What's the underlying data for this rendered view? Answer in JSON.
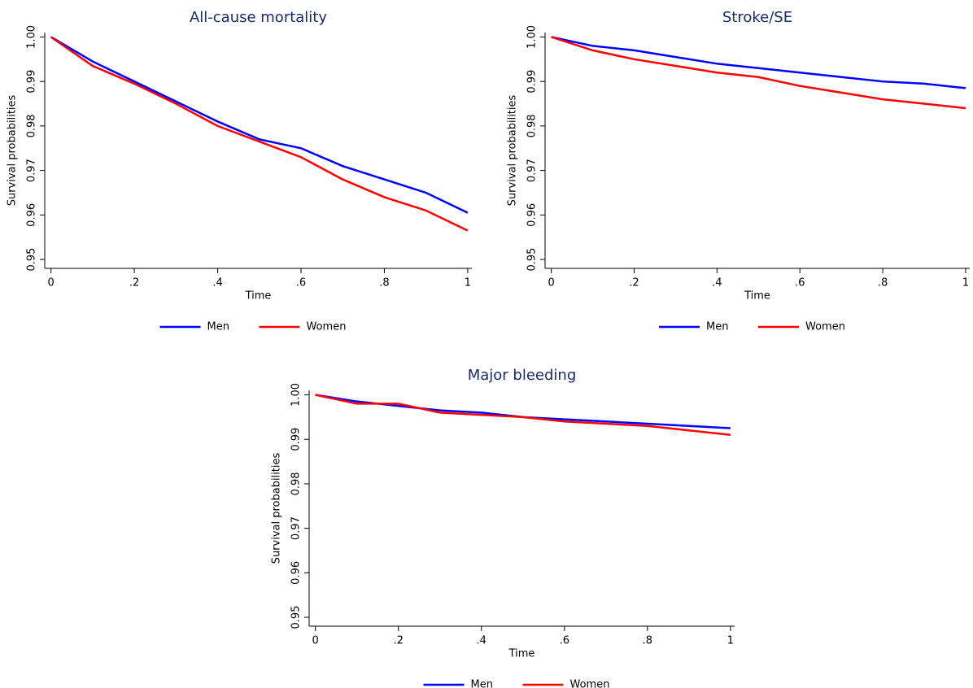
{
  "chart_data": [
    {
      "type": "line",
      "title": "All-cause mortality",
      "x_label": "Time",
      "y_label": "Survival probabilities",
      "x": [
        0,
        0.1,
        0.2,
        0.3,
        0.4,
        0.5,
        0.6,
        0.7,
        0.8,
        0.9,
        1
      ],
      "series": [
        {
          "name": "Men",
          "color": "#0000ff",
          "values": [
            1.0,
            0.9945,
            0.99,
            0.9855,
            0.981,
            0.977,
            0.975,
            0.971,
            0.968,
            0.965,
            0.9605
          ]
        },
        {
          "name": "Women",
          "color": "#ff0000",
          "values": [
            1.0,
            0.9935,
            0.9895,
            0.985,
            0.98,
            0.9765,
            0.973,
            0.968,
            0.964,
            0.961,
            0.9565
          ]
        }
      ],
      "xlim": [
        -0.015,
        1.01
      ],
      "ylim": [
        0.948,
        1.001
      ],
      "xticks": [
        0,
        {
          "value": 0.2,
          "label": ".2"
        },
        {
          "value": 0.4,
          "label": ".4"
        },
        {
          "value": 0.6,
          "label": ".6"
        },
        {
          "value": 0.8,
          "label": ".8"
        },
        1
      ],
      "yticks": [
        0.95,
        0.96,
        0.97,
        0.98,
        0.99,
        {
          "value": 1,
          "label": "1.00"
        }
      ]
    },
    {
      "type": "line",
      "title": "Stroke/SE",
      "x_label": "Time",
      "y_label": "Survival probabilities",
      "x": [
        0,
        0.1,
        0.2,
        0.3,
        0.4,
        0.5,
        0.6,
        0.7,
        0.8,
        0.9,
        1
      ],
      "series": [
        {
          "name": "Men",
          "color": "#0000ff",
          "values": [
            1.0,
            0.998,
            0.997,
            0.9955,
            0.994,
            0.993,
            0.992,
            0.991,
            0.99,
            0.9895,
            0.9885
          ]
        },
        {
          "name": "Women",
          "color": "#ff0000",
          "values": [
            1.0,
            0.997,
            0.995,
            0.9935,
            0.992,
            0.991,
            0.989,
            0.9875,
            0.986,
            0.985,
            0.984
          ]
        }
      ],
      "xlim": [
        -0.015,
        1.01
      ],
      "ylim": [
        0.948,
        1.001
      ],
      "xticks": [
        0,
        {
          "value": 0.2,
          "label": ".2"
        },
        {
          "value": 0.4,
          "label": ".4"
        },
        {
          "value": 0.6,
          "label": ".6"
        },
        {
          "value": 0.8,
          "label": ".8"
        },
        1
      ],
      "yticks": [
        0.95,
        0.96,
        0.97,
        0.98,
        0.99,
        {
          "value": 1,
          "label": "1.00"
        }
      ]
    },
    {
      "type": "line",
      "title": "Major bleeding",
      "x_label": "Time",
      "y_label": "Survival probabilities",
      "x": [
        0,
        0.1,
        0.2,
        0.3,
        0.4,
        0.5,
        0.6,
        0.7,
        0.8,
        0.9,
        1
      ],
      "series": [
        {
          "name": "Men",
          "color": "#0000ff",
          "values": [
            1.0,
            0.9985,
            0.9975,
            0.9965,
            0.996,
            0.995,
            0.9945,
            0.994,
            0.9935,
            0.993,
            0.9925
          ]
        },
        {
          "name": "Women",
          "color": "#ff0000",
          "values": [
            1.0,
            0.998,
            0.998,
            0.996,
            0.9955,
            0.995,
            0.994,
            0.9935,
            0.993,
            0.992,
            0.991
          ]
        }
      ],
      "xlim": [
        -0.015,
        1.01
      ],
      "ylim": [
        0.948,
        1.001
      ],
      "xticks": [
        0,
        {
          "value": 0.2,
          "label": ".2"
        },
        {
          "value": 0.4,
          "label": ".4"
        },
        {
          "value": 0.6,
          "label": ".6"
        },
        {
          "value": 0.8,
          "label": ".8"
        },
        1
      ],
      "yticks": [
        0.95,
        0.96,
        0.97,
        0.98,
        0.99,
        {
          "value": 1,
          "label": "1.00"
        }
      ]
    }
  ]
}
